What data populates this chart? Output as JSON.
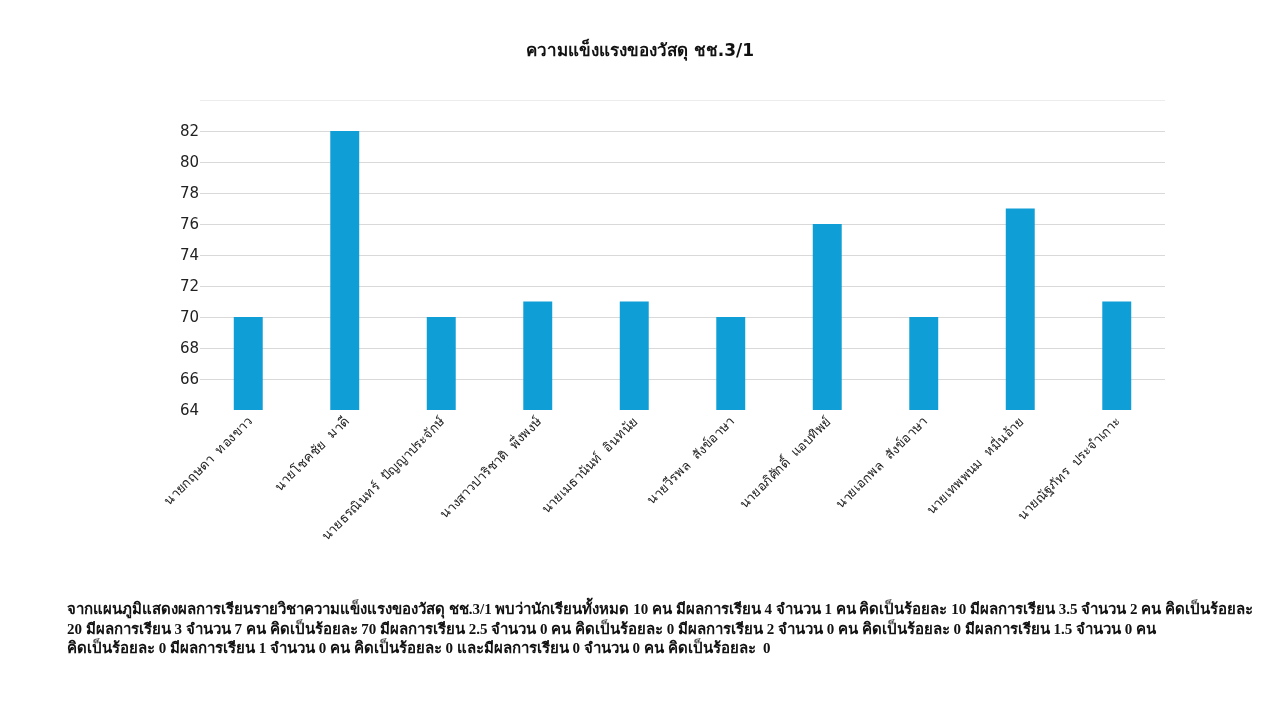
{
  "chart_data": {
    "type": "bar",
    "title": "ความแข็งแรงของวัสดุ ชช.3/1",
    "categories": [
      "นายกฤษดา  ทองขาว",
      "นายโชคชัย  มาดี",
      "นายธรณินทร์  ปัญญาประจักษ์",
      "นางสาวปาริชาติ  พึ่งพงษ์",
      "นายเมธานันท์  อินทนัย",
      "นายวีรพล  สังข์อาษา",
      "นายอภิศักดิ์  แอบทิพย์",
      "นายเอกพล  สังข์อาษา",
      "นายเทพพนม  หมื่นอ้าย",
      "นายณัฐภัทร  ประจำเกาะ"
    ],
    "values": [
      70,
      82,
      70,
      71,
      71,
      70,
      76,
      70,
      77,
      71
    ],
    "color": "#109ed6",
    "ylim": [
      64,
      84
    ],
    "yticks": [
      64,
      66,
      68,
      70,
      72,
      74,
      76,
      78,
      80,
      82,
      {
        "value": 84,
        "label": null
      }
    ],
    "grid": "y",
    "annotations": [
      "จากแผนภูมิแสดงผลการเรียนรายวิชาความแข็งแรงของวัสดุ ชช.3/1 พบว่านักเรียนทั้งหมด 10 คน มีผลการเรียน 4 จำนวน 1 คน คิดเป็นร้อยละ 10 มีผลการเรียน 3.5 จำนวน 2 คน คิดเป็นร้อยละ  20 มีผลการเรียน 3 จำนวน 7 คน คิดเป็นร้อยละ 70 มีผลการเรียน 2.5 จำนวน 0 คน คิดเป็นร้อยละ 0 มีผลการเรียน 2 จำนวน 0 คน คิดเป็นร้อยละ 0 มีผลการเรียน 1.5 จำนวน 0 คน คิดเป็นร้อยละ 0 มีผลการเรียน 1 จำนวน 0 คน คิดเป็นร้อยละ 0 และมีผลการเรียน 0 จำนวน 0 คน คิดเป็นร้อยละ  0"
    ]
  }
}
